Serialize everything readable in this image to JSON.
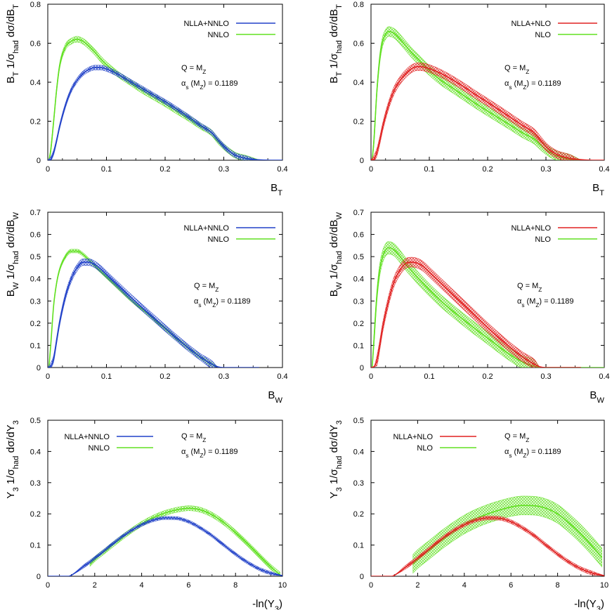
{
  "chart_data": [
    {
      "type": "line",
      "observable": "B_T",
      "xlabel": "B_T",
      "ylabel": "B_T 1/σ_had dσ/dB_T",
      "xlim": [
        0,
        0.4
      ],
      "ylim": [
        0,
        0.8
      ],
      "xticks": [
        "0",
        "0.1",
        "0.2",
        "0.3",
        "0.4"
      ],
      "yticks": [
        "0",
        "0.2",
        "0.4",
        "0.6",
        "0.8"
      ],
      "legend": [
        "NLLA+NNLO",
        "NNLO"
      ],
      "annotations": [
        "Q = M_Z",
        "α_s (M_Z) = 0.1189"
      ],
      "series": [
        {
          "name": "NLLA+NNLO",
          "color": "#2040c8",
          "x": [
            0,
            0.005,
            0.01,
            0.015,
            0.02,
            0.03,
            0.04,
            0.05,
            0.06,
            0.07,
            0.08,
            0.09,
            0.1,
            0.12,
            0.14,
            0.16,
            0.18,
            0.2,
            0.22,
            0.24,
            0.26,
            0.28,
            0.29,
            0.3,
            0.31,
            0.32,
            0.34,
            0.36,
            0.38,
            0.4
          ],
          "y": [
            0,
            0.005,
            0.04,
            0.1,
            0.17,
            0.28,
            0.36,
            0.41,
            0.445,
            0.465,
            0.475,
            0.475,
            0.468,
            0.44,
            0.405,
            0.37,
            0.335,
            0.3,
            0.262,
            0.222,
            0.18,
            0.14,
            0.105,
            0.072,
            0.045,
            0.025,
            0.008,
            0.002,
            0,
            0
          ],
          "band": 0.012
        },
        {
          "name": "NNLO",
          "color": "#60e020",
          "x": [
            0.002,
            0.005,
            0.01,
            0.015,
            0.02,
            0.03,
            0.04,
            0.05,
            0.06,
            0.07,
            0.08,
            0.09,
            0.1,
            0.12,
            0.14,
            0.16,
            0.18,
            0.2,
            0.22,
            0.24,
            0.26,
            0.28,
            0.29,
            0.3,
            0.31,
            0.32,
            0.34,
            0.36
          ],
          "y": [
            0,
            0.05,
            0.2,
            0.36,
            0.48,
            0.58,
            0.61,
            0.62,
            0.61,
            0.585,
            0.555,
            0.52,
            0.49,
            0.44,
            0.4,
            0.36,
            0.325,
            0.29,
            0.252,
            0.215,
            0.175,
            0.138,
            0.1,
            0.07,
            0.045,
            0.025,
            0.008,
            0.002
          ],
          "band": 0.015
        }
      ]
    },
    {
      "type": "line",
      "observable": "B_T",
      "xlabel": "B_T",
      "ylabel": "B_T 1/σ_had dσ/dB_T",
      "xlim": [
        0,
        0.4
      ],
      "ylim": [
        0,
        0.8
      ],
      "xticks": [
        "0",
        "0.1",
        "0.2",
        "0.3",
        "0.4"
      ],
      "yticks": [
        "0",
        "0.2",
        "0.4",
        "0.6",
        "0.8"
      ],
      "legend": [
        "NLLA+NLO",
        "NLO"
      ],
      "annotations": [
        "Q = M_Z",
        "α_s (M_Z) = 0.1189"
      ],
      "series": [
        {
          "name": "NLLA+NLO",
          "color": "#e02020",
          "x": [
            0,
            0.005,
            0.01,
            0.015,
            0.02,
            0.03,
            0.04,
            0.05,
            0.06,
            0.07,
            0.08,
            0.09,
            0.1,
            0.12,
            0.14,
            0.16,
            0.18,
            0.2,
            0.22,
            0.24,
            0.26,
            0.28,
            0.29,
            0.3,
            0.31,
            0.32,
            0.34,
            0.36,
            0.38,
            0.4
          ],
          "y": [
            0,
            0.005,
            0.04,
            0.1,
            0.17,
            0.28,
            0.36,
            0.41,
            0.445,
            0.47,
            0.48,
            0.478,
            0.47,
            0.445,
            0.412,
            0.375,
            0.335,
            0.297,
            0.258,
            0.218,
            0.178,
            0.14,
            0.105,
            0.07,
            0.045,
            0.028,
            0.01,
            0.003,
            0,
            0
          ],
          "band": 0.02
        },
        {
          "name": "NLO",
          "color": "#60e020",
          "x": [
            0.002,
            0.005,
            0.01,
            0.015,
            0.02,
            0.025,
            0.03,
            0.04,
            0.05,
            0.06,
            0.07,
            0.08,
            0.1,
            0.12,
            0.14,
            0.16,
            0.18,
            0.2,
            0.22,
            0.24,
            0.26,
            0.28,
            0.29,
            0.3,
            0.31,
            0.32,
            0.34,
            0.36
          ],
          "y": [
            0,
            0.1,
            0.35,
            0.52,
            0.61,
            0.645,
            0.66,
            0.65,
            0.62,
            0.585,
            0.55,
            0.52,
            0.46,
            0.41,
            0.37,
            0.33,
            0.29,
            0.252,
            0.215,
            0.178,
            0.14,
            0.108,
            0.08,
            0.055,
            0.035,
            0.02,
            0.006,
            0.001
          ],
          "band": 0.025
        }
      ]
    },
    {
      "type": "line",
      "observable": "B_W",
      "xlabel": "B_W",
      "ylabel": "B_W 1/σ_had dσ/dB_W",
      "xlim": [
        0,
        0.4
      ],
      "ylim": [
        0,
        0.7
      ],
      "xticks": [
        "0",
        "0.1",
        "0.2",
        "0.3",
        "0.4"
      ],
      "yticks": [
        "0",
        "0.1",
        "0.2",
        "0.3",
        "0.4",
        "0.5",
        "0.6",
        "0.7"
      ],
      "legend": [
        "NLLA+NNLO",
        "NNLO"
      ],
      "annotations": [
        "Q = M_Z",
        "α_s (M_Z) = 0.1189"
      ],
      "series": [
        {
          "name": "NLLA+NNLO",
          "color": "#2040c8",
          "x": [
            0,
            0.005,
            0.01,
            0.015,
            0.02,
            0.03,
            0.04,
            0.05,
            0.06,
            0.07,
            0.08,
            0.09,
            0.1,
            0.12,
            0.14,
            0.16,
            0.18,
            0.2,
            0.22,
            0.24,
            0.26,
            0.28,
            0.29,
            0.3,
            0.32,
            0.34,
            0.36
          ],
          "y": [
            0,
            0.005,
            0.04,
            0.12,
            0.2,
            0.32,
            0.4,
            0.45,
            0.475,
            0.475,
            0.465,
            0.445,
            0.42,
            0.37,
            0.32,
            0.272,
            0.225,
            0.178,
            0.132,
            0.088,
            0.048,
            0.015,
            0.003,
            0,
            0,
            0,
            0
          ],
          "band": 0.015
        },
        {
          "name": "NNLO",
          "color": "#60e020",
          "x": [
            0.002,
            0.005,
            0.01,
            0.015,
            0.02,
            0.03,
            0.04,
            0.05,
            0.06,
            0.07,
            0.08,
            0.1,
            0.12,
            0.14,
            0.16,
            0.18,
            0.2,
            0.22,
            0.24,
            0.26,
            0.28,
            0.29
          ],
          "y": [
            0,
            0.1,
            0.28,
            0.38,
            0.44,
            0.5,
            0.525,
            0.525,
            0.51,
            0.485,
            0.46,
            0.41,
            0.36,
            0.31,
            0.265,
            0.22,
            0.175,
            0.13,
            0.087,
            0.047,
            0.014,
            0.003
          ],
          "band": 0.008
        }
      ]
    },
    {
      "type": "line",
      "observable": "B_W",
      "xlabel": "B_W",
      "ylabel": "B_W 1/σ_had dσ/dB_W",
      "xlim": [
        0,
        0.4
      ],
      "ylim": [
        0,
        0.7
      ],
      "xticks": [
        "0",
        "0.1",
        "0.2",
        "0.3",
        "0.4"
      ],
      "yticks": [
        "0",
        "0.1",
        "0.2",
        "0.3",
        "0.4",
        "0.5",
        "0.6",
        "0.7"
      ],
      "legend": [
        "NLLA+NLO",
        "NLO"
      ],
      "annotations": [
        "Q = M_Z",
        "α_s (M_Z) = 0.1189"
      ],
      "series": [
        {
          "name": "NLLA+NLO",
          "color": "#e02020",
          "x": [
            0,
            0.005,
            0.01,
            0.015,
            0.02,
            0.03,
            0.04,
            0.05,
            0.06,
            0.07,
            0.08,
            0.09,
            0.1,
            0.12,
            0.14,
            0.16,
            0.18,
            0.2,
            0.22,
            0.24,
            0.26,
            0.28,
            0.29,
            0.3,
            0.32,
            0.34,
            0.36
          ],
          "y": [
            0,
            0.004,
            0.03,
            0.1,
            0.18,
            0.3,
            0.39,
            0.44,
            0.47,
            0.475,
            0.47,
            0.455,
            0.43,
            0.38,
            0.33,
            0.28,
            0.23,
            0.18,
            0.133,
            0.088,
            0.048,
            0.015,
            0.003,
            0,
            0,
            0,
            0
          ],
          "band": 0.022
        },
        {
          "name": "NLO",
          "color": "#60e020",
          "x": [
            0.002,
            0.005,
            0.01,
            0.015,
            0.02,
            0.025,
            0.03,
            0.04,
            0.05,
            0.06,
            0.07,
            0.08,
            0.1,
            0.12,
            0.14,
            0.16,
            0.18,
            0.2,
            0.22,
            0.24,
            0.26,
            0.28,
            0.29,
            0.3,
            0.32,
            0.34,
            0.36,
            0.38,
            0.4
          ],
          "y": [
            0,
            0.12,
            0.32,
            0.44,
            0.5,
            0.53,
            0.54,
            0.53,
            0.5,
            0.465,
            0.435,
            0.405,
            0.35,
            0.3,
            0.255,
            0.213,
            0.172,
            0.133,
            0.093,
            0.055,
            0.025,
            0.006,
            0.001,
            0,
            0,
            0,
            0,
            0,
            0
          ],
          "band": 0.028
        }
      ]
    },
    {
      "type": "line",
      "observable": "Y_3",
      "xlabel": "-ln(Y_3)",
      "ylabel": "Y_3 1/σ_had dσ/dY_3",
      "xlim": [
        0,
        10
      ],
      "ylim": [
        0,
        0.5
      ],
      "xticks": [
        "0",
        "2",
        "4",
        "6",
        "8",
        "10"
      ],
      "yticks": [
        "0",
        "0.1",
        "0.2",
        "0.3",
        "0.4",
        "0.5"
      ],
      "legend": [
        "NLLA+NNLO",
        "NNLO"
      ],
      "annotations": [
        "Q = M_Z",
        "α_s (M_Z) = 0.1189"
      ],
      "series": [
        {
          "name": "NLLA+NNLO",
          "color": "#2040c8",
          "x": [
            0,
            0.9,
            1.0,
            1.5,
            2,
            2.5,
            3,
            3.5,
            4,
            4.5,
            5,
            5.5,
            6,
            6.5,
            7,
            7.5,
            8,
            8.5,
            9,
            9.5,
            10
          ],
          "y": [
            0,
            0,
            0.003,
            0.03,
            0.058,
            0.088,
            0.118,
            0.144,
            0.165,
            0.18,
            0.187,
            0.186,
            0.175,
            0.155,
            0.13,
            0.1,
            0.071,
            0.045,
            0.024,
            0.01,
            0.002
          ],
          "band": 0.005
        },
        {
          "name": "NNLO",
          "color": "#60e020",
          "x": [
            1.8,
            2,
            2.5,
            3,
            3.5,
            4,
            4.5,
            5,
            5.5,
            6,
            6.5,
            7,
            7.5,
            8,
            8.5,
            9,
            9.5,
            9.9
          ],
          "y": [
            0.04,
            0.055,
            0.085,
            0.115,
            0.143,
            0.168,
            0.188,
            0.203,
            0.213,
            0.218,
            0.213,
            0.197,
            0.172,
            0.14,
            0.105,
            0.067,
            0.03,
            0.005
          ],
          "band": 0.008
        }
      ]
    },
    {
      "type": "line",
      "observable": "Y_3",
      "xlabel": "-ln(Y_3)",
      "ylabel": "Y_3 1/σ_had dσ/dY_3",
      "xlim": [
        0,
        10
      ],
      "ylim": [
        0,
        0.5
      ],
      "xticks": [
        "0",
        "2",
        "4",
        "6",
        "8",
        "10"
      ],
      "yticks": [
        "0",
        "0.1",
        "0.2",
        "0.3",
        "0.4",
        "0.5"
      ],
      "legend": [
        "NLLA+NLO",
        "NLO"
      ],
      "annotations": [
        "Q = M_Z",
        "α_s (M_Z) = 0.1189"
      ],
      "series": [
        {
          "name": "NLLA+NLO",
          "color": "#e02020",
          "x": [
            0,
            0.9,
            1.0,
            1.5,
            2,
            2.5,
            3,
            3.5,
            4,
            4.5,
            5,
            5.5,
            6,
            6.5,
            7,
            7.5,
            8,
            8.5,
            9,
            9.5,
            10
          ],
          "y": [
            0,
            0,
            0.003,
            0.03,
            0.058,
            0.088,
            0.118,
            0.144,
            0.165,
            0.18,
            0.187,
            0.186,
            0.175,
            0.155,
            0.13,
            0.1,
            0.071,
            0.045,
            0.024,
            0.01,
            0.002
          ],
          "band": 0.006
        },
        {
          "name": "NLO",
          "color": "#60e020",
          "x": [
            1.8,
            2,
            2.5,
            3,
            3.5,
            4,
            4.5,
            5,
            5.5,
            6,
            6.5,
            7,
            7.5,
            8,
            8.5,
            9,
            9.5,
            9.9
          ],
          "y": [
            0.04,
            0.055,
            0.085,
            0.115,
            0.142,
            0.166,
            0.185,
            0.2,
            0.212,
            0.222,
            0.227,
            0.226,
            0.218,
            0.2,
            0.17,
            0.135,
            0.095,
            0.06
          ],
          "band": 0.03
        }
      ]
    }
  ]
}
